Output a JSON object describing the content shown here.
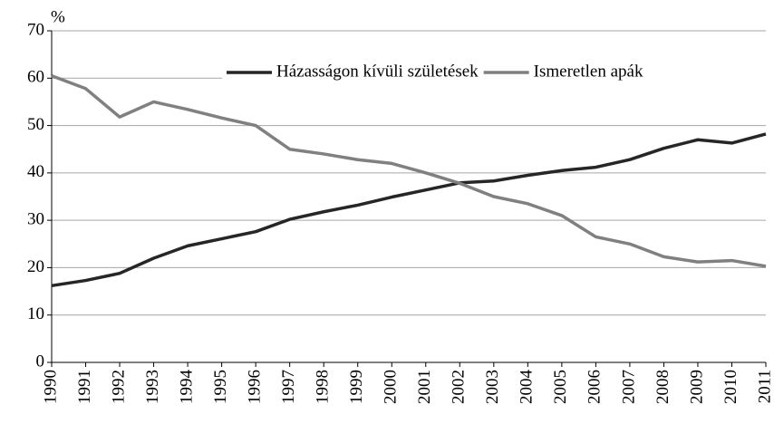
{
  "chart_data": {
    "type": "line",
    "y_label": "%",
    "x": [
      1990,
      1991,
      1992,
      1993,
      1994,
      1995,
      1996,
      1997,
      1998,
      1999,
      2000,
      2001,
      2002,
      2003,
      2004,
      2005,
      2006,
      2007,
      2008,
      2009,
      2010,
      2011
    ],
    "xlim": [
      1990,
      2011
    ],
    "xticks": [
      1990,
      1991,
      1992,
      1993,
      1994,
      1995,
      1996,
      1997,
      1998,
      1999,
      2000,
      2001,
      2002,
      2003,
      2004,
      2005,
      2006,
      2007,
      2008,
      2009,
      2010,
      2011
    ],
    "ylim": [
      0,
      70
    ],
    "yticks": [
      0,
      10,
      20,
      30,
      40,
      50,
      60,
      70
    ],
    "grid": true,
    "legend": "top-right",
    "series": [
      {
        "name": "Házasságon kívüli születések",
        "color": "#262626",
        "values": [
          16.2,
          17.3,
          18.8,
          22,
          24.6,
          26.1,
          27.6,
          30.2,
          31.8,
          33.2,
          34.9,
          36.4,
          37.9,
          38.3,
          39.5,
          40.5,
          41.2,
          42.8,
          45.2,
          47,
          46.3,
          48.2
        ]
      },
      {
        "name": "Ismeretlen apák",
        "color": "#808080",
        "values": [
          60.5,
          57.8,
          51.8,
          55,
          53.4,
          51.6,
          50,
          45,
          44,
          42.8,
          42,
          40,
          37.8,
          35,
          33.5,
          31,
          26.5,
          25,
          22.3,
          21.2,
          21.5,
          20.3
        ]
      }
    ]
  }
}
